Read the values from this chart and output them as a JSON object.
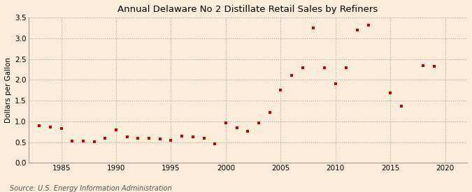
{
  "title": "Annual Delaware No 2 Distillate Retail Sales by Refiners",
  "ylabel": "Dollars per Gallon",
  "source": "Source: U.S. Energy Information Administration",
  "background_color": "#faecd8",
  "marker_color": "#cc0000",
  "xlim": [
    1982,
    2022
  ],
  "ylim": [
    0.0,
    3.5
  ],
  "yticks": [
    0.0,
    0.5,
    1.0,
    1.5,
    2.0,
    2.5,
    3.0,
    3.5
  ],
  "xticks": [
    1985,
    1990,
    1995,
    2000,
    2005,
    2010,
    2015,
    2020
  ],
  "data": [
    [
      1983,
      0.89
    ],
    [
      1984,
      0.87
    ],
    [
      1985,
      0.83
    ],
    [
      1986,
      0.52
    ],
    [
      1987,
      0.53
    ],
    [
      1988,
      0.51
    ],
    [
      1989,
      0.6
    ],
    [
      1990,
      0.8
    ],
    [
      1991,
      0.63
    ],
    [
      1992,
      0.6
    ],
    [
      1993,
      0.59
    ],
    [
      1994,
      0.57
    ],
    [
      1995,
      0.55
    ],
    [
      1996,
      0.64
    ],
    [
      1997,
      0.63
    ],
    [
      1998,
      0.59
    ],
    [
      1999,
      0.46
    ],
    [
      2000,
      0.97
    ],
    [
      2001,
      0.85
    ],
    [
      2002,
      0.77
    ],
    [
      2003,
      0.96
    ],
    [
      2004,
      1.21
    ],
    [
      2005,
      1.75
    ],
    [
      2006,
      2.1
    ],
    [
      2007,
      2.3
    ],
    [
      2008,
      3.26
    ],
    [
      2009,
      2.3
    ],
    [
      2010,
      1.9
    ],
    [
      2011,
      2.3
    ],
    [
      2012,
      3.2
    ],
    [
      2013,
      3.32
    ],
    [
      2015,
      1.69
    ],
    [
      2016,
      1.37
    ],
    [
      2018,
      2.35
    ],
    [
      2019,
      2.33
    ]
  ]
}
